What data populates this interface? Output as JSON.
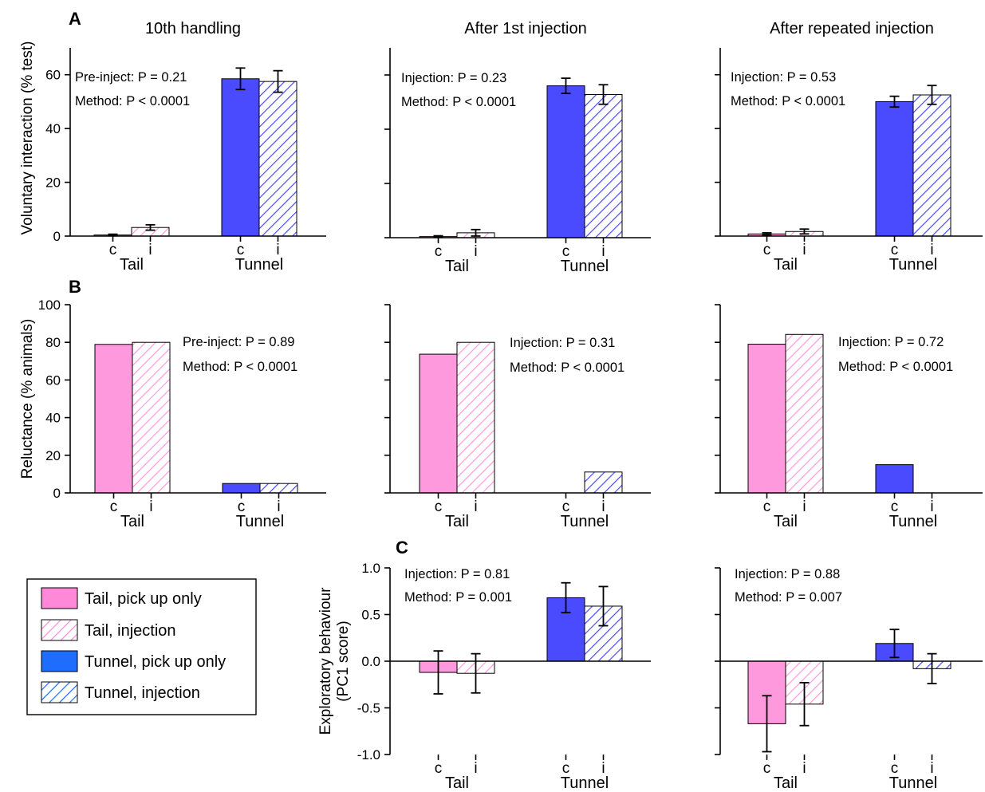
{
  "figure": {
    "panel_letters": [
      "A",
      "B",
      "C"
    ],
    "column_titles": [
      "10th handling",
      "After 1st injection",
      "After repeated injection"
    ],
    "colors": {
      "tail": "#ff99dd",
      "tail_stripe": "#ff99dd",
      "tunnel": "#4a4aff",
      "tunnel_stripe": "#4a4aff",
      "legend_tail": "#ff88d8",
      "legend_tunnel": "#1f6dff"
    },
    "legend": {
      "items": [
        {
          "label": "Tail, pick up only",
          "key": "tail_c"
        },
        {
          "label": "Tail, injection",
          "key": "tail_i"
        },
        {
          "label": "Tunnel, pick up only",
          "key": "tunnel_c"
        },
        {
          "label": "Tunnel, injection",
          "key": "tunnel_i"
        }
      ]
    }
  },
  "chart_data": [
    {
      "id": "A1",
      "row": "A",
      "type": "bar",
      "title": "10th handling",
      "ylabel": "Voluntary interaction (% test)",
      "ylim": [
        0,
        70
      ],
      "yticks": [
        0,
        20,
        40,
        60
      ],
      "ytick_labels": [
        "0",
        "20",
        "40",
        "60"
      ],
      "groups": [
        "Tail",
        "Tunnel"
      ],
      "categories": [
        "c",
        "i"
      ],
      "series": [
        {
          "group": "Tail",
          "cat": "c",
          "value": 0.4,
          "err": 0.3
        },
        {
          "group": "Tail",
          "cat": "i",
          "value": 3.2,
          "err": 1.0
        },
        {
          "group": "Tunnel",
          "cat": "c",
          "value": 58.5,
          "err": 4.0
        },
        {
          "group": "Tunnel",
          "cat": "i",
          "value": 57.5,
          "err": 4.0
        }
      ],
      "stats": [
        "Pre-inject: P = 0.21",
        "Method: P < 0.0001"
      ],
      "stats_position": "top-left"
    },
    {
      "id": "A2",
      "row": "A",
      "type": "bar",
      "title": "After 1st injection",
      "ylabel": "",
      "ylim": [
        0,
        70
      ],
      "yticks": [
        0,
        20,
        40,
        60
      ],
      "ytick_labels": [
        "",
        "",
        "",
        ""
      ],
      "groups": [
        "Tail",
        "Tunnel"
      ],
      "categories": [
        "c",
        "i"
      ],
      "series": [
        {
          "group": "Tail",
          "cat": "c",
          "value": 0.4,
          "err": 0.3
        },
        {
          "group": "Tail",
          "cat": "i",
          "value": 1.8,
          "err": 1.2
        },
        {
          "group": "Tunnel",
          "cat": "c",
          "value": 56.0,
          "err": 2.8
        },
        {
          "group": "Tunnel",
          "cat": "i",
          "value": 52.8,
          "err": 3.6
        }
      ],
      "stats": [
        "Injection: P = 0.23",
        "Method: P < 0.0001"
      ],
      "stats_position": "top-left"
    },
    {
      "id": "A3",
      "row": "A",
      "type": "bar",
      "title": "After repeated injection",
      "ylabel": "",
      "ylim": [
        0,
        70
      ],
      "yticks": [
        0,
        20,
        40,
        60
      ],
      "ytick_labels": [
        "",
        "",
        "",
        ""
      ],
      "groups": [
        "Tail",
        "Tunnel"
      ],
      "categories": [
        "c",
        "i"
      ],
      "series": [
        {
          "group": "Tail",
          "cat": "c",
          "value": 0.8,
          "err": 0.4
        },
        {
          "group": "Tail",
          "cat": "i",
          "value": 1.7,
          "err": 0.9
        },
        {
          "group": "Tunnel",
          "cat": "c",
          "value": 50.0,
          "err": 2.0
        },
        {
          "group": "Tunnel",
          "cat": "i",
          "value": 52.5,
          "err": 3.5
        }
      ],
      "stats": [
        "Injection: P = 0.53",
        "Method: P < 0.0001"
      ],
      "stats_position": "top-left"
    },
    {
      "id": "B1",
      "row": "B",
      "type": "bar",
      "title": "",
      "ylabel": "Reluctance (% animals)",
      "ylim": [
        0,
        100
      ],
      "yticks": [
        0,
        20,
        40,
        60,
        80,
        100
      ],
      "ytick_labels": [
        "0",
        "20",
        "40",
        "60",
        "80",
        "100"
      ],
      "groups": [
        "Tail",
        "Tunnel"
      ],
      "categories": [
        "c",
        "i"
      ],
      "series": [
        {
          "group": "Tail",
          "cat": "c",
          "value": 78.9
        },
        {
          "group": "Tail",
          "cat": "i",
          "value": 80.0
        },
        {
          "group": "Tunnel",
          "cat": "c",
          "value": 5.0
        },
        {
          "group": "Tunnel",
          "cat": "i",
          "value": 5.0
        }
      ],
      "stats": [
        "Pre-inject: P = 0.89",
        "Method: P < 0.0001"
      ],
      "stats_position": "top-right"
    },
    {
      "id": "B2",
      "row": "B",
      "type": "bar",
      "title": "",
      "ylabel": "",
      "ylim": [
        0,
        100
      ],
      "yticks": [
        0,
        20,
        40,
        60,
        80,
        100
      ],
      "ytick_labels": [
        "",
        "",
        "",
        "",
        "",
        ""
      ],
      "groups": [
        "Tail",
        "Tunnel"
      ],
      "categories": [
        "c",
        "i"
      ],
      "series": [
        {
          "group": "Tail",
          "cat": "c",
          "value": 73.7
        },
        {
          "group": "Tail",
          "cat": "i",
          "value": 80.0
        },
        {
          "group": "Tunnel",
          "cat": "c",
          "value": 0.0
        },
        {
          "group": "Tunnel",
          "cat": "i",
          "value": 11.1
        }
      ],
      "stats": [
        "Injection: P = 0.31",
        "Method: P < 0.0001"
      ],
      "stats_position": "top-right"
    },
    {
      "id": "B3",
      "row": "B",
      "type": "bar",
      "title": "",
      "ylabel": "",
      "ylim": [
        0,
        100
      ],
      "yticks": [
        0,
        20,
        40,
        60,
        80,
        100
      ],
      "ytick_labels": [
        "",
        "",
        "",
        "",
        "",
        ""
      ],
      "groups": [
        "Tail",
        "Tunnel"
      ],
      "categories": [
        "c",
        "i"
      ],
      "series": [
        {
          "group": "Tail",
          "cat": "c",
          "value": 79.0
        },
        {
          "group": "Tail",
          "cat": "i",
          "value": 84.2
        },
        {
          "group": "Tunnel",
          "cat": "c",
          "value": 15.0
        },
        {
          "group": "Tunnel",
          "cat": "i",
          "value": 0.0
        }
      ],
      "stats": [
        "Injection: P = 0.72",
        "Method: P < 0.0001"
      ],
      "stats_position": "top-right"
    },
    {
      "id": "C2",
      "row": "C",
      "type": "bar",
      "title": "",
      "ylabel": "Exploratory behaviour (PC1 score)",
      "ylabel_lines": [
        "Exploratory behaviour",
        "(PC1 score)"
      ],
      "ylim": [
        -1.0,
        1.0
      ],
      "yticks": [
        -1.0,
        -0.5,
        0.0,
        0.5,
        1.0
      ],
      "ytick_labels": [
        "-1.0",
        "-0.5",
        "0.0",
        "0.5",
        "1.0"
      ],
      "zero_line": true,
      "groups": [
        "Tail",
        "Tunnel"
      ],
      "categories": [
        "c",
        "i"
      ],
      "series": [
        {
          "group": "Tail",
          "cat": "c",
          "value": -0.12,
          "err": 0.23
        },
        {
          "group": "Tail",
          "cat": "i",
          "value": -0.13,
          "err": 0.21
        },
        {
          "group": "Tunnel",
          "cat": "c",
          "value": 0.68,
          "err": 0.16
        },
        {
          "group": "Tunnel",
          "cat": "i",
          "value": 0.59,
          "err": 0.21
        }
      ],
      "stats": [
        "Injection: P = 0.81",
        "Method: P = 0.001"
      ],
      "stats_position": "top-left"
    },
    {
      "id": "C3",
      "row": "C",
      "type": "bar",
      "title": "",
      "ylabel": "",
      "ylim": [
        -1.0,
        1.0
      ],
      "yticks": [
        -1.0,
        -0.5,
        0.0,
        0.5,
        1.0
      ],
      "ytick_labels": [
        "",
        "",
        "",
        "",
        ""
      ],
      "zero_line": true,
      "groups": [
        "Tail",
        "Tunnel"
      ],
      "categories": [
        "c",
        "i"
      ],
      "series": [
        {
          "group": "Tail",
          "cat": "c",
          "value": -0.67,
          "err": 0.3
        },
        {
          "group": "Tail",
          "cat": "i",
          "value": -0.46,
          "err": 0.23
        },
        {
          "group": "Tunnel",
          "cat": "c",
          "value": 0.19,
          "err": 0.15
        },
        {
          "group": "Tunnel",
          "cat": "i",
          "value": -0.08,
          "err": 0.16
        }
      ],
      "stats": [
        "Injection: P = 0.88",
        "Method: P = 0.007"
      ],
      "stats_position": "top-left"
    }
  ]
}
